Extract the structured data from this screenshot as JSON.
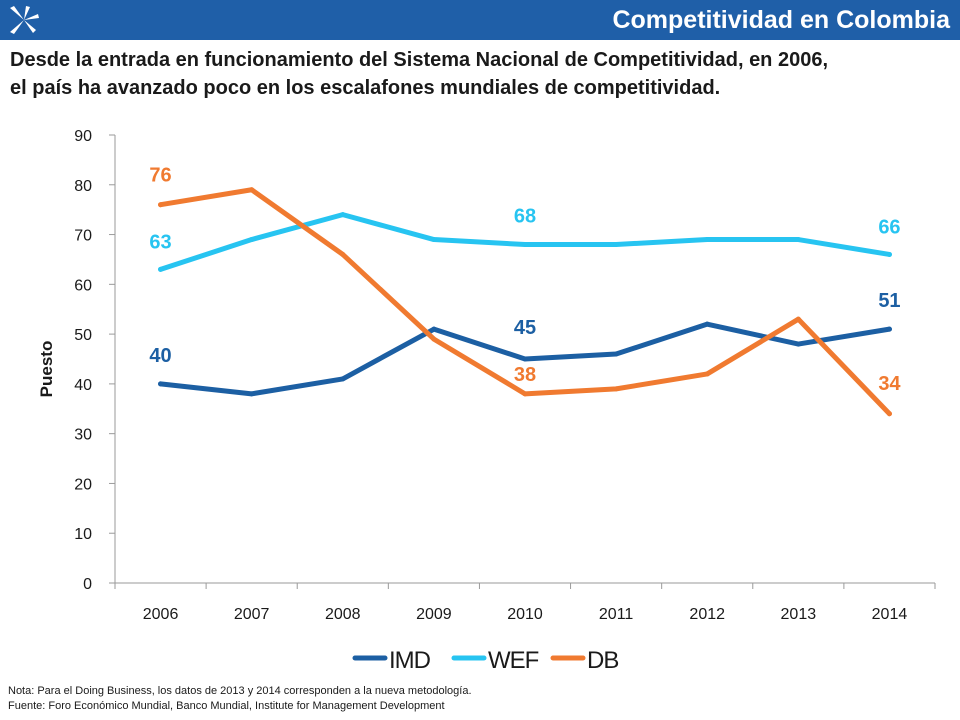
{
  "header": {
    "title": "Competitividad en Colombia",
    "accent_color": "#1f5fa8",
    "logo_icon": "star-icon"
  },
  "subtitle": {
    "line1": "Desde la entrada en funcionamiento del Sistema Nacional de Competitividad, en 2006,",
    "line2": "el país ha avanzado poco en los escalafones mundiales de competitividad."
  },
  "footer": {
    "note": "Nota: Para el Doing Business, los datos de 2013 y 2014 corresponden a la nueva metodología.",
    "source": "Fuente: Foro Económico Mundial, Banco Mundial, Institute for Management Development"
  },
  "chart_data": {
    "type": "line",
    "title": "",
    "xlabel": "",
    "ylabel": "Puesto",
    "ylim": [
      0,
      90
    ],
    "yticks": [
      0,
      10,
      20,
      30,
      40,
      50,
      60,
      70,
      80,
      90
    ],
    "categories": [
      "2006",
      "2007",
      "2008",
      "2009",
      "2010",
      "2011",
      "2012",
      "2013",
      "2014"
    ],
    "grid": false,
    "legend": "bottom-center",
    "series": [
      {
        "name": "IMD",
        "color": "#1c5fa3",
        "values": [
          40,
          38,
          41,
          51,
          45,
          46,
          52,
          48,
          51
        ],
        "labels": [
          {
            "index": 0,
            "text": "40"
          },
          {
            "index": 4,
            "text": "45"
          },
          {
            "index": 8,
            "text": "51"
          }
        ]
      },
      {
        "name": "WEF",
        "color": "#27c4f1",
        "values": [
          63,
          69,
          74,
          69,
          68,
          68,
          69,
          69,
          66
        ],
        "labels": [
          {
            "index": 0,
            "text": "63"
          },
          {
            "index": 4,
            "text": "68"
          },
          {
            "index": 8,
            "text": "66"
          }
        ]
      },
      {
        "name": "DB",
        "color": "#f07a30",
        "values": [
          76,
          79,
          66,
          49,
          38,
          39,
          42,
          53,
          34
        ],
        "labels": [
          {
            "index": 0,
            "text": "76"
          },
          {
            "index": 4,
            "text": "38"
          },
          {
            "index": 8,
            "text": "34"
          }
        ]
      }
    ]
  }
}
